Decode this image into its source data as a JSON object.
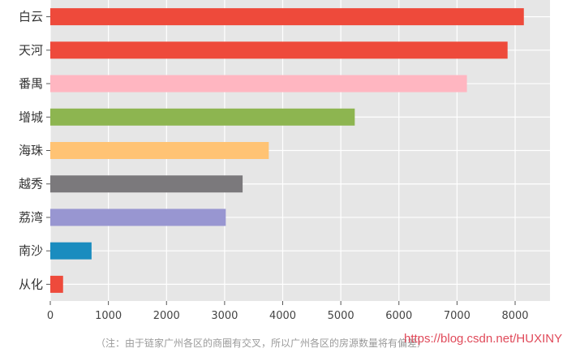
{
  "chart_data": {
    "type": "bar",
    "orientation": "horizontal",
    "categories": [
      "白云",
      "天河",
      "番禺",
      "增城",
      "海珠",
      "越秀",
      "荔湾",
      "南沙",
      "从化"
    ],
    "values": [
      8150,
      7870,
      7170,
      5240,
      3760,
      3310,
      3020,
      710,
      220
    ],
    "colors": [
      "#ee4a3b",
      "#ee4a3b",
      "#ffb6c1",
      "#8db550",
      "#ffc374",
      "#7b797c",
      "#9896d1",
      "#1a8cbf",
      "#ee4a3b"
    ],
    "x_ticks": [
      0,
      1000,
      2000,
      3000,
      4000,
      5000,
      6000,
      7000,
      8000
    ],
    "xlim": [
      0,
      8600
    ],
    "grid": true,
    "background": "#e6e6e6",
    "title": "",
    "xlabel": "",
    "ylabel": ""
  },
  "footnote": "（注：由于链家广州各区的商圈有交叉，所以广州各区的房源数量将有偏差）",
  "watermark": "https://blog.csdn.net/HUXINY"
}
